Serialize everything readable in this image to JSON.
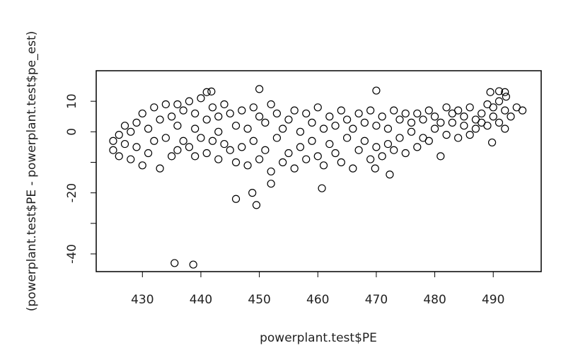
{
  "chart_data": {
    "type": "scatter",
    "x_label": "powerplant.test$PE",
    "y_label": "(powerplant.test$PE - powerplant.test$pe_est)",
    "xlim": [
      422.1,
      498.2
    ],
    "ylim": [
      -45.8,
      20
    ],
    "xticks": [
      430,
      440,
      450,
      460,
      470,
      480,
      490
    ],
    "yticks": [
      10,
      0,
      {
        "value": -10,
        "label": null
      },
      -20,
      {
        "value": -30,
        "label": null
      },
      -40
    ],
    "color": "#000000",
    "x": [
      425,
      425,
      426,
      426,
      427,
      427,
      428,
      428,
      429,
      429,
      430,
      430,
      431,
      431,
      432,
      432,
      433,
      433,
      434,
      434,
      435,
      435,
      436,
      436,
      436,
      437,
      437,
      438,
      438,
      439,
      439,
      439,
      440,
      440,
      441,
      441,
      442,
      442,
      443,
      443,
      443,
      444,
      444,
      445,
      445,
      446,
      446,
      447,
      447,
      448,
      448,
      449,
      449,
      450,
      450,
      451,
      451,
      452,
      452,
      453,
      453,
      454,
      454,
      455,
      455,
      456,
      456,
      457,
      457,
      458,
      458,
      459,
      459,
      460,
      460,
      461,
      461,
      462,
      462,
      463,
      463,
      464,
      464,
      465,
      465,
      466,
      466,
      467,
      467,
      468,
      468,
      469,
      469,
      470,
      470,
      471,
      471,
      472,
      472,
      473,
      473,
      474,
      474,
      475,
      475,
      476,
      476,
      477,
      477,
      478,
      478,
      479,
      479,
      480,
      480,
      481,
      481,
      482,
      482,
      483,
      483,
      484,
      484,
      485,
      485,
      486,
      486,
      487,
      487,
      488,
      488,
      489,
      489,
      490,
      490,
      491,
      491,
      492,
      492,
      493,
      494,
      495,
      435.5,
      438.7,
      446,
      448.8,
      449.5,
      452,
      460.7,
      450,
      470,
      441,
      441.8,
      489.5,
      491,
      492,
      492.2,
      489.8,
      472.3,
      469.8
    ],
    "y": [
      -3,
      -6,
      -1,
      -8,
      -4,
      2,
      -9,
      0,
      3,
      -5,
      -11,
      6,
      1,
      -7,
      8,
      -3,
      -12,
      4,
      -2,
      9,
      5,
      -8,
      2,
      -6,
      9,
      -3,
      7,
      10,
      -5,
      1,
      -8,
      6,
      -2,
      11,
      4,
      -7,
      8,
      -3,
      0,
      -9,
      5,
      -4,
      9,
      6,
      -6,
      -10,
      2,
      7,
      -5,
      1,
      -11,
      -3,
      8,
      5,
      -9,
      -6,
      3,
      9,
      -13,
      -2,
      6,
      -10,
      1,
      4,
      -7,
      -12,
      7,
      0,
      -5,
      6,
      -9,
      -3,
      3,
      -8,
      8,
      1,
      -11,
      5,
      -4,
      -7,
      2,
      7,
      -10,
      -2,
      4,
      -12,
      1,
      6,
      -6,
      -3,
      3,
      -9,
      7,
      2,
      -5,
      -8,
      5,
      1,
      -4,
      7,
      -6,
      -2,
      4,
      6,
      -7,
      0,
      3,
      -5,
      6,
      4,
      -2,
      7,
      -3,
      1,
      5,
      -8,
      3,
      8,
      -1,
      3,
      6,
      -2,
      7,
      5,
      2,
      8,
      -1,
      4,
      1,
      6,
      3,
      9,
      2,
      5,
      8,
      3,
      10,
      7,
      1,
      5,
      8,
      7,
      -43,
      -43.5,
      -22,
      -20,
      -24,
      -17,
      -18.5,
      14,
      13.5,
      13,
      13.2,
      13,
      13.3,
      13,
      11.5,
      -3.5,
      -14,
      -12
    ]
  }
}
